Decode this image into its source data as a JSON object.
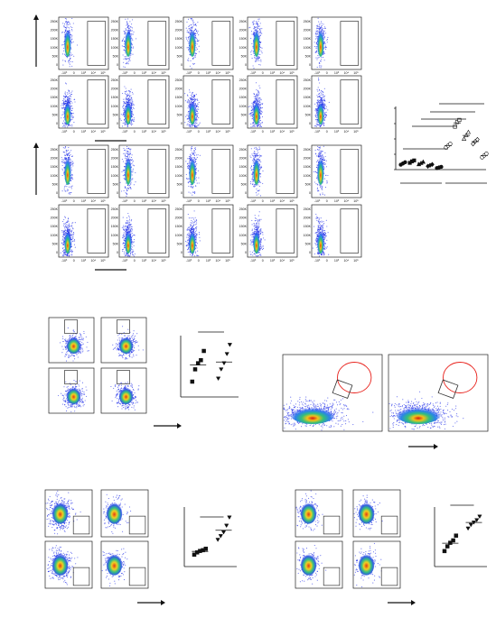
{
  "panels": {
    "a": {
      "letter": "a",
      "days": [
        "Day 0",
        "Day 1",
        "Day 3",
        "Day 5",
        "Day 7"
      ],
      "groups": [
        {
          "label": "Adult",
          "rows": [
            {
              "label": "FMO",
              "values": [
                "0",
                "0",
                "0",
                "0",
                "0"
              ]
            },
            {
              "label": "PPS14",
              "values": [
                "0.16",
                "0.29",
                "0.21",
                "0.13",
                "0.062"
              ]
            }
          ]
        },
        {
          "label": "Neonate",
          "rows": [
            {
              "label": "FMO",
              "values": [
                "0",
                "0",
                "0",
                "0",
                "0"
              ]
            },
            {
              "label": "PPS14",
              "values": [
                "0.77",
                "1.53",
                "1.11",
                "0.93",
                "0.46"
              ]
            }
          ]
        }
      ],
      "y_axis": "SSC-A",
      "x_axis": "IL-6-APC",
      "y_ticks": [
        "250K",
        "200K",
        "150K",
        "100K",
        "50K",
        "0"
      ],
      "x_ticks": [
        "-10³",
        "0",
        "10³",
        "10⁴",
        "10⁵"
      ]
    },
    "b": {
      "letter": "b",
      "columns": [
        "FMO",
        "PPS14"
      ],
      "rows": [
        {
          "label": "Adult",
          "values": [
            "0.015",
            "0.11"
          ]
        },
        {
          "label": "Neonate",
          "values": [
            "0.015",
            "0.11"
          ]
        }
      ],
      "y_axis": "pSTAT3-Alexa 488",
      "x_axis": "CD4-PerCP-Cy5.5",
      "significance": "ns"
    },
    "c": {
      "letter": "c",
      "title_line1": "Total Tₐₕ (PD1⁺CXCR5⁺) cells",
      "title_line2": "Pre-Tₐₕ (PD1ᴵⁿᵗCXCR5ᴵⁿᵗ) cells",
      "columns": [
        {
          "label": "Adult",
          "total_label": "Total Tₐₕ",
          "total_value": "3.80",
          "pre_label": "Pre-Tₐₕ",
          "pre_value": "2.76"
        },
        {
          "label": "Neonate",
          "total_label": "Total Tₐₕ",
          "total_value": "2.36",
          "pre_label": "Pre-Tₐₕ",
          "pre_value": "1.72"
        }
      ],
      "y_axis": "PD1-PE",
      "x_axis": "CXCR5-BV421"
    },
    "d": {
      "letter": "d",
      "title": "Total Tₐₕ (PD1⁺CXCR5⁺pSTAT3⁺) cells",
      "columns": [
        "FMO",
        "PPS14"
      ],
      "rows": [
        {
          "label": "Adult",
          "values": [
            "0.18",
            "2.17"
          ]
        },
        {
          "label": "Neonate",
          "values": [
            "0.15",
            "6.67"
          ]
        }
      ],
      "y_axis": "FoxP3-Alexa 647",
      "x_axis": "pSTAT3-Alexa 488",
      "significance": "*"
    },
    "e": {
      "letter": "e",
      "title": "Pre-Tₐₕ (PD1ᴵⁿᵗCXCR5ᴵⁿᵗpSTAT3⁺) cells",
      "columns": [
        "FMO",
        "PPS14"
      ],
      "rows": [
        {
          "label": "Adult",
          "values": [
            "0",
            "1.57"
          ]
        },
        {
          "label": "Neonate",
          "values": [
            "0",
            "3.78"
          ]
        }
      ],
      "y_axis": "FoxP3-Alexa 647",
      "x_axis": "pSTAT3-Alexa 488",
      "significance": "**"
    }
  },
  "chart_data": [
    {
      "type": "scatter",
      "panel": "a",
      "ylabel": "%IL-6⁺ of splenocytes",
      "xlabel": "Days",
      "ylim": [
        0,
        2.0
      ],
      "y_ticks": [
        "0",
        "0.5",
        "1.0",
        "1.5",
        "2.0"
      ],
      "categories": [
        "0",
        "1",
        "3",
        "5",
        "7",
        "0",
        "1",
        "3",
        "5",
        "7"
      ],
      "group_labels": [
        "Adult",
        "Neonate"
      ],
      "series": [
        {
          "group": "Adult",
          "day": "0",
          "values": [
            0.16,
            0.2,
            0.24
          ]
        },
        {
          "group": "Adult",
          "day": "1",
          "values": [
            0.22,
            0.27,
            0.3
          ]
        },
        {
          "group": "Adult",
          "day": "3",
          "values": [
            0.17,
            0.21,
            0.25
          ]
        },
        {
          "group": "Adult",
          "day": "5",
          "values": [
            0.11,
            0.14,
            0.17
          ]
        },
        {
          "group": "Adult",
          "day": "7",
          "values": [
            0.05,
            0.07,
            0.09
          ]
        },
        {
          "group": "Neonate",
          "day": "0",
          "values": [
            0.72,
            0.78,
            0.84
          ]
        },
        {
          "group": "Neonate",
          "day": "1",
          "values": [
            1.4,
            1.55,
            1.62
          ]
        },
        {
          "group": "Neonate",
          "day": "3",
          "values": [
            1.0,
            1.12,
            1.22
          ]
        },
        {
          "group": "Neonate",
          "day": "5",
          "values": [
            0.84,
            0.92,
            0.98
          ]
        },
        {
          "group": "Neonate",
          "day": "7",
          "values": [
            0.4,
            0.46,
            0.52
          ]
        }
      ],
      "significance": [
        "**",
        "****",
        "****",
        "**",
        "ns"
      ]
    },
    {
      "type": "scatter",
      "panel": "b",
      "ylabel": "% pSTAT3⁺ of CD4⁺ cells",
      "categories": [
        "Adult",
        "Neonate"
      ],
      "series": [
        {
          "name": "Adult",
          "values": [
            0.05,
            0.09,
            0.11,
            0.12,
            0.15
          ]
        },
        {
          "name": "Neonate",
          "values": [
            0.06,
            0.09,
            0.11,
            0.14,
            0.17
          ]
        }
      ],
      "ylim": [
        0,
        0.2
      ],
      "significance": "ns"
    },
    {
      "type": "scatter",
      "panel": "d",
      "ylabel": "% pSTAT3⁺ of CD4⁺PD1⁺CXCR5⁺ cells",
      "categories": [
        "Adult",
        "Neonate"
      ],
      "series": [
        {
          "name": "Adult",
          "values": [
            1.6,
            1.9,
            2.1,
            2.2,
            2.4
          ]
        },
        {
          "name": "Neonate",
          "values": [
            3.6,
            4.1,
            4.6,
            5.5,
            6.6
          ]
        }
      ],
      "ylim": [
        0,
        8
      ],
      "significance": "*"
    },
    {
      "type": "scatter",
      "panel": "e",
      "ylabel": "% pSTAT3⁺ of PD1ᴵⁿᵗCXCR5ᴵⁿᵗ cells",
      "categories": [
        "Adult",
        "Neonate"
      ],
      "series": [
        {
          "name": "Adult",
          "values": [
            1.3,
            1.7,
            2.0,
            2.2,
            2.6
          ]
        },
        {
          "name": "Neonate",
          "values": [
            3.2,
            3.5,
            3.7,
            3.9,
            4.2
          ]
        }
      ],
      "ylim": [
        0,
        5
      ],
      "significance": "**"
    }
  ]
}
